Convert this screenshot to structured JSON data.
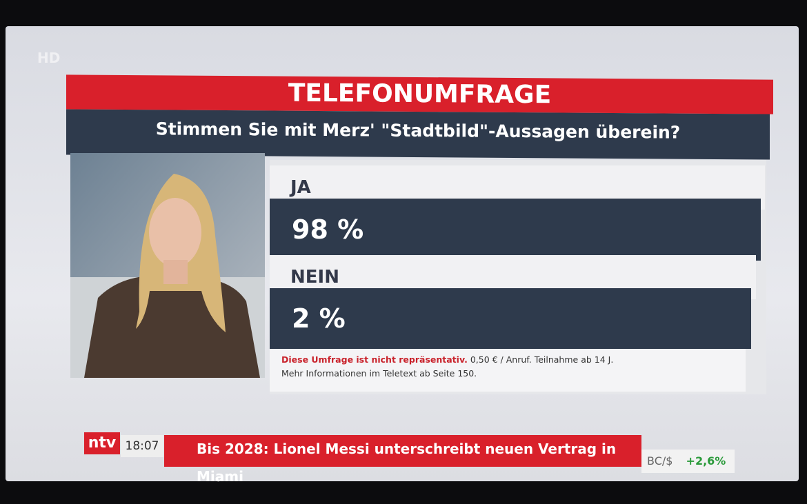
{
  "channel_badge": "HD",
  "poll": {
    "title": "TELEFONUMFRAGE",
    "question": "Stimmen Sie mit Merz' \"Stadtbild\"-Aussagen überein?",
    "options": [
      {
        "label": "JA",
        "result": "98 %"
      },
      {
        "label": "NEIN",
        "result": "2 %"
      }
    ],
    "disclaimer": "Diese Umfrage ist nicht repräsentativ.",
    "cost": "0,50 € / Anruf. Teilnahme ab 14 J.",
    "info": "Mehr Informationen im Teletext ab Seite 150."
  },
  "ticker": {
    "logo": "ntv",
    "time": "18:07",
    "headline": "Bis 2028: Lionel Messi unterschreibt neuen Vertrag in Miami",
    "market_symbol": "BC/$",
    "market_change": "+2,6%"
  }
}
